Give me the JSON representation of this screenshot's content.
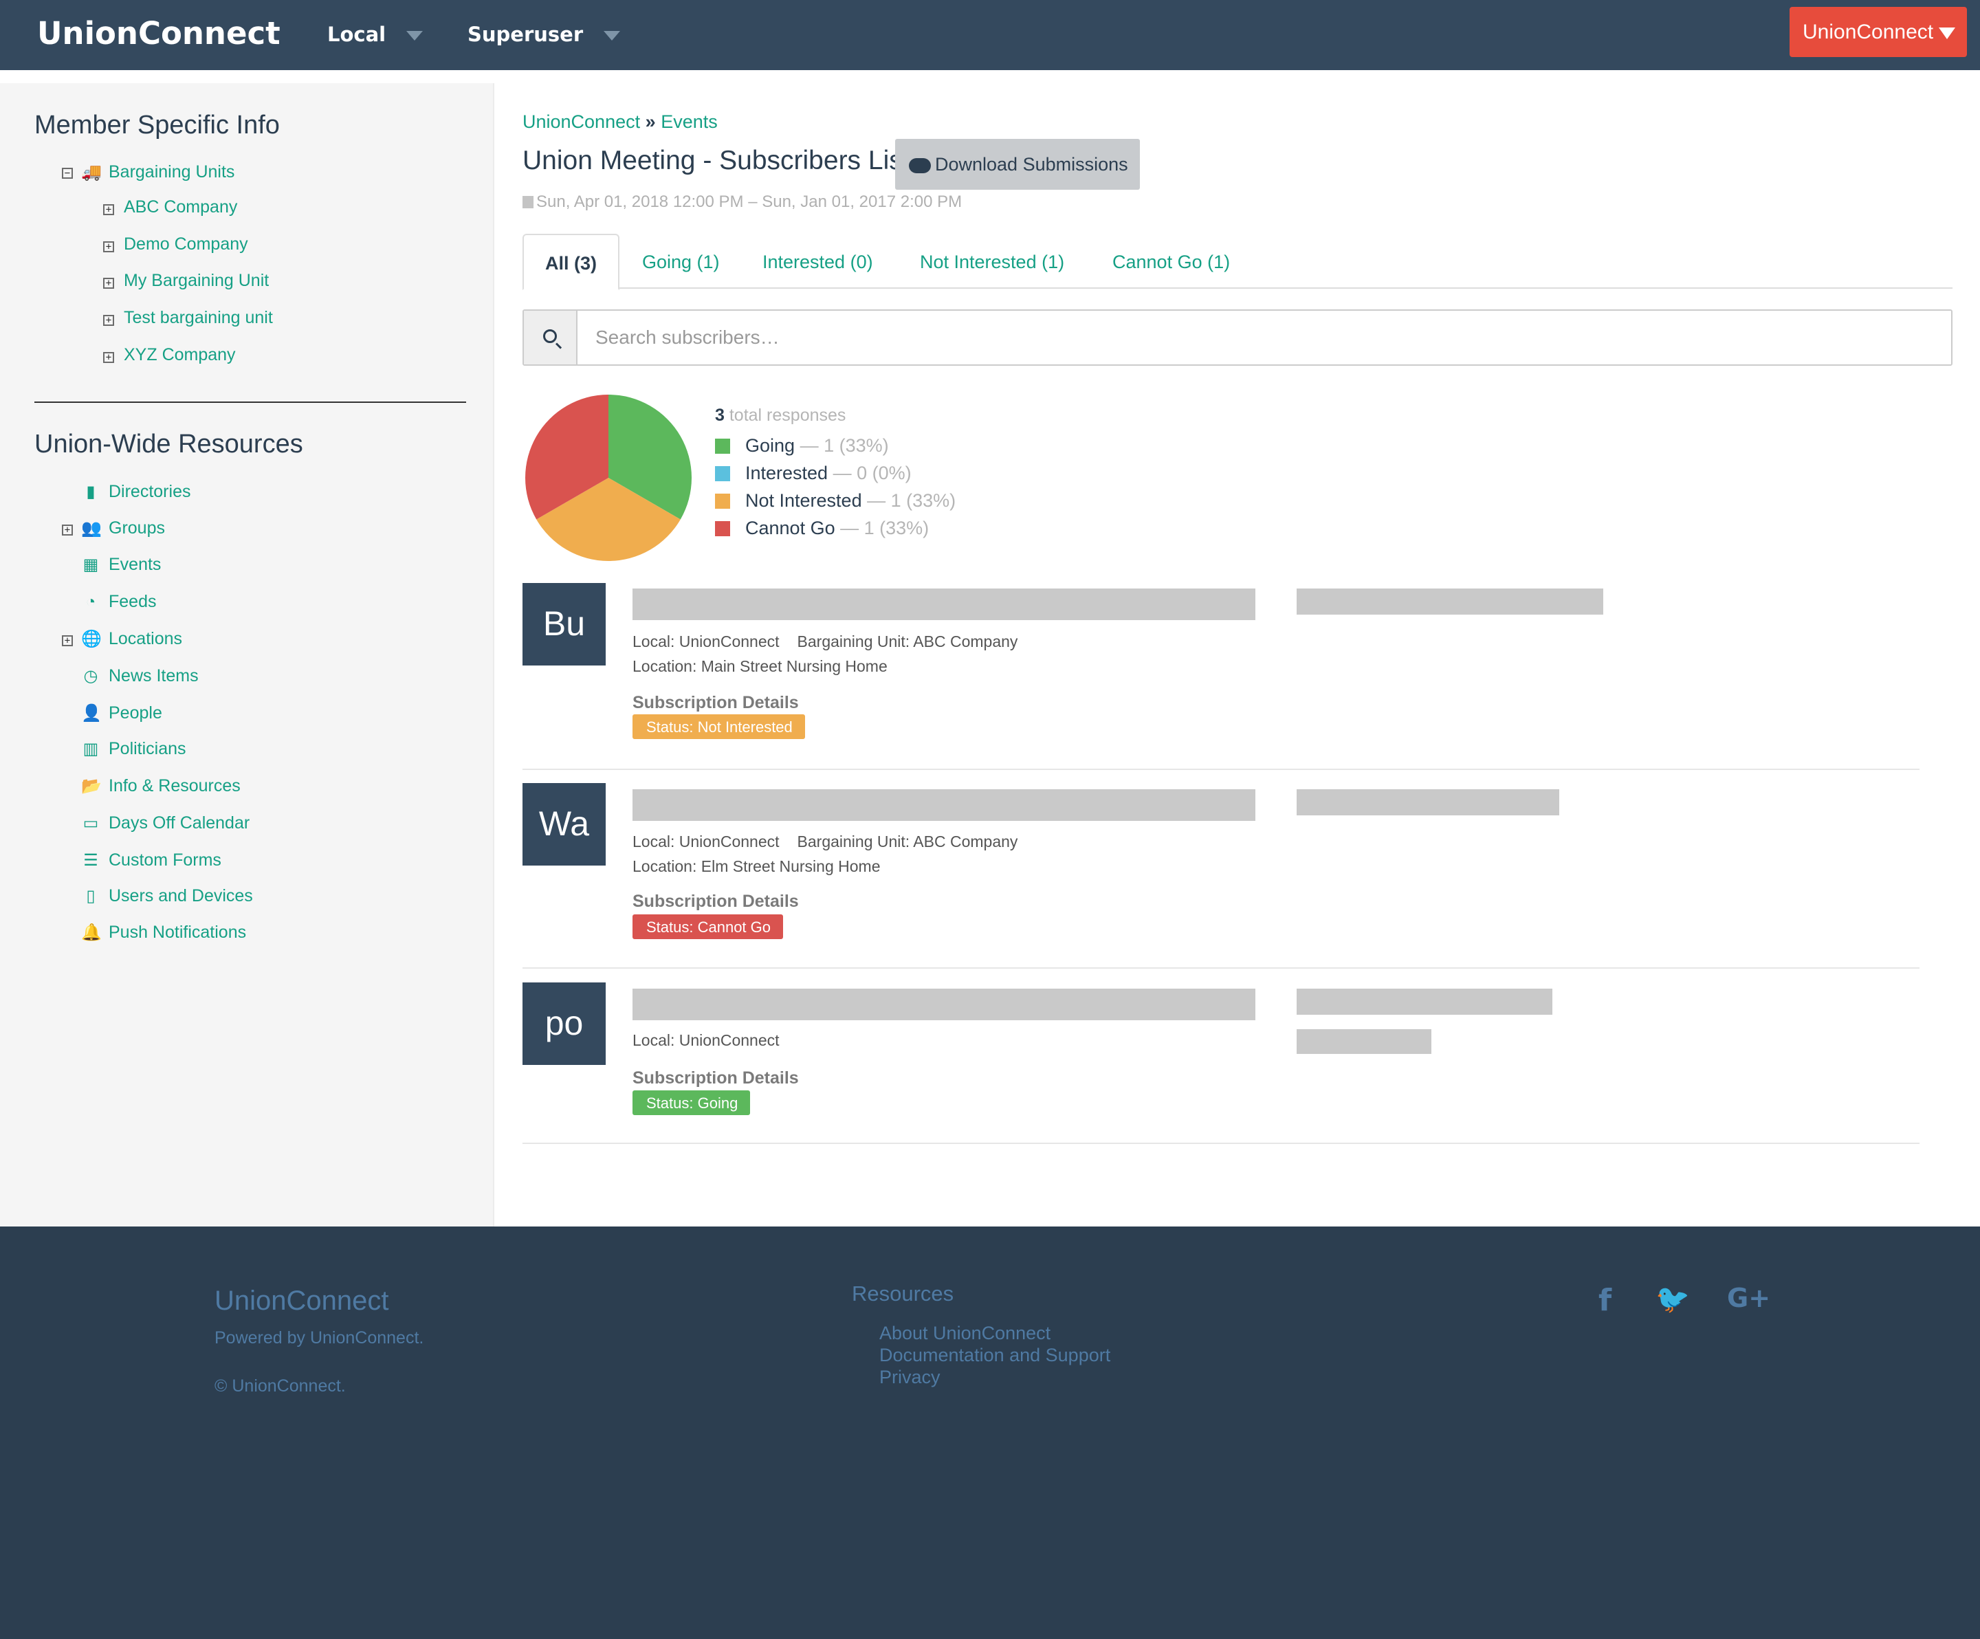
{
  "nav": {
    "brand": "UnionConnect",
    "local_label": "Local",
    "superuser_label": "Superuser",
    "account_label": "UnionConnect"
  },
  "sidebar": {
    "member_heading": "Member Specific Info",
    "bargaining_units_label": "Bargaining Units",
    "bargaining_units": [
      "ABC Company",
      "Demo Company",
      "My Bargaining Unit",
      "Test bargaining unit",
      "XYZ Company"
    ],
    "resources_heading": "Union-Wide Resources",
    "resources": [
      {
        "label": "Directories",
        "icon": "book-icon"
      },
      {
        "label": "Groups",
        "icon": "users-icon"
      },
      {
        "label": "Events",
        "icon": "calendar-grid-icon"
      },
      {
        "label": "Feeds",
        "icon": "rss-icon"
      },
      {
        "label": "Locations",
        "icon": "globe-icon"
      },
      {
        "label": "News Items",
        "icon": "clock-icon"
      },
      {
        "label": "People",
        "icon": "person-icon"
      },
      {
        "label": "Politicians",
        "icon": "building-icon"
      },
      {
        "label": "Info & Resources",
        "icon": "folder-open-icon"
      },
      {
        "label": "Days Off Calendar",
        "icon": "calendar-icon"
      },
      {
        "label": "Custom Forms",
        "icon": "list-icon"
      },
      {
        "label": "Users and Devices",
        "icon": "tablet-icon"
      },
      {
        "label": "Push Notifications",
        "icon": "bell-icon"
      }
    ]
  },
  "breadcrumb": {
    "root": "UnionConnect",
    "sep": "»",
    "current": "Events"
  },
  "page": {
    "title": "Union Meeting - Subscribers List",
    "download_label": "Download Submissions",
    "date_range": "Sun, Apr 01, 2018 12:00 PM – Sun, Jan 01, 2017 2:00 PM"
  },
  "tabs": [
    "All (3)",
    "Going (1)",
    "Interested (0)",
    "Not Interested (1)",
    "Cannot Go (1)"
  ],
  "search": {
    "placeholder": "Search subscribers…"
  },
  "summary": {
    "total": "3",
    "total_label": "total responses",
    "legend": [
      {
        "label": "Going",
        "count": "— 1 (33%)",
        "color": "#5cb85c",
        "value": 1
      },
      {
        "label": "Interested",
        "count": "— 0 (0%)",
        "color": "#5bc0de",
        "value": 0
      },
      {
        "label": "Not Interested",
        "count": "— 1 (33%)",
        "color": "#f0ad4e",
        "value": 1
      },
      {
        "label": "Cannot Go",
        "count": "— 1 (33%)",
        "color": "#d9534f",
        "value": 1
      }
    ]
  },
  "subscribers": [
    {
      "initials": "Bu",
      "local": "Local: UnionConnect",
      "unit": "Bargaining Unit: ABC Company",
      "location": "Location: Main Street Nursing Home",
      "details_label": "Subscription Details",
      "status": "Status: Not Interested",
      "status_color": "#f0ad4e"
    },
    {
      "initials": "Wa",
      "local": "Local: UnionConnect",
      "unit": "Bargaining Unit: ABC Company",
      "location": "Location: Elm Street Nursing Home",
      "details_label": "Subscription Details",
      "status": "Status: Cannot Go",
      "status_color": "#d9534f"
    },
    {
      "initials": "po",
      "local": "Local: UnionConnect",
      "details_label": "Subscription Details",
      "status": "Status: Going",
      "status_color": "#5cb85c"
    }
  ],
  "footer": {
    "brand": "UnionConnect",
    "powered": "Powered by UnionConnect.",
    "copyright": "© UnionConnect.",
    "resources_heading": "Resources",
    "links": [
      "About UnionConnect",
      "Documentation and Support",
      "Privacy"
    ],
    "social": [
      {
        "icon": "facebook-icon",
        "glyph": "f"
      },
      {
        "icon": "twitter-icon",
        "glyph": "🐦"
      },
      {
        "icon": "google-plus-icon",
        "glyph": "G+"
      }
    ]
  }
}
